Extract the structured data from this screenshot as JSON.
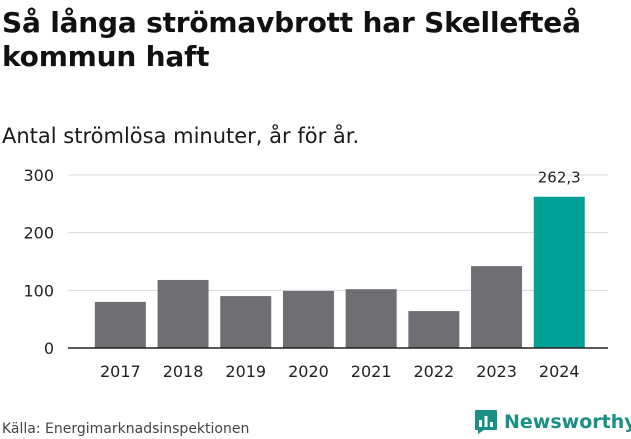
{
  "title": "Så långa strömavbrott har Skellefteå kommun haft",
  "subtitle": "Antal strömlösa minuter, år för år.",
  "source": "Källa: Energimarknadsinspektionen",
  "brand": {
    "name": "Newsworthy",
    "icon": "newsworthy-logo-icon",
    "color": "#1a8f86"
  },
  "colors": {
    "bar": "#6f6e73",
    "highlight": "#00a096",
    "grid": "#d9d9d9",
    "axis": "#222222"
  },
  "chart_data": {
    "type": "bar",
    "title": "Så långa strömavbrott har Skellefteå kommun haft",
    "subtitle": "Antal strömlösa minuter, år för år.",
    "xlabel": "",
    "ylabel": "",
    "categories": [
      "2017",
      "2018",
      "2019",
      "2020",
      "2021",
      "2022",
      "2023",
      "2024"
    ],
    "values": [
      80,
      118,
      90,
      99,
      102,
      64,
      142,
      262.3
    ],
    "highlight_index": 7,
    "data_labels": [
      {
        "index": 7,
        "text": "262,3"
      }
    ],
    "ylim": [
      0,
      300
    ],
    "yticks": [
      0,
      100,
      200,
      300
    ],
    "grid": true
  }
}
